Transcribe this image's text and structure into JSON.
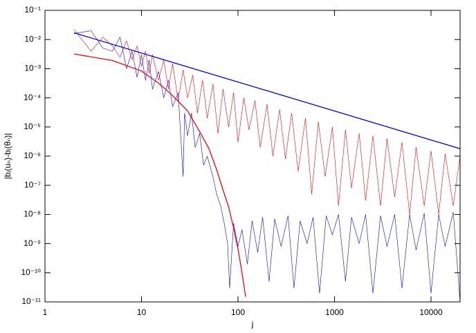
{
  "chart_data": {
    "type": "line",
    "x_label": "j",
    "y_label": "|bⱼ(uₙ)-bⱼ(θₙ)|",
    "xlog": true,
    "ylog": true,
    "grid": false,
    "xlim": [
      1,
      20000
    ],
    "ylim": [
      1e-11,
      0.1
    ],
    "xticks": [
      1,
      10,
      100,
      1000,
      10000
    ],
    "yticks": [
      {
        "value": 0.1,
        "label": "10⁻¹"
      },
      {
        "value": 0.01,
        "label": "10⁻²"
      },
      {
        "value": 0.001,
        "label": "10⁻³"
      },
      {
        "value": 0.0001,
        "label": "10⁻⁴"
      },
      {
        "value": 1e-05,
        "label": "10⁻⁵"
      },
      {
        "value": 1e-06,
        "label": "10⁻⁶"
      },
      {
        "value": 1e-07,
        "label": "10⁻⁷"
      },
      {
        "value": 1e-08,
        "label": "10⁻⁸"
      },
      {
        "value": 1e-09,
        "label": "10⁻⁹"
      },
      {
        "value": 1e-10,
        "label": "10⁻¹⁰"
      },
      {
        "value": 1e-11,
        "label": "10⁻¹¹"
      }
    ],
    "series": [
      {
        "color": "#ff0000",
        "width": 0.6,
        "x": [
          2,
          3,
          4,
          5,
          6,
          7,
          8,
          9,
          10,
          11,
          12,
          13,
          15,
          17,
          19,
          21,
          24,
          27,
          30,
          34,
          38,
          43,
          48,
          55,
          62,
          70,
          80,
          90,
          100,
          115,
          130,
          150,
          170,
          200,
          230,
          270,
          310,
          360,
          420,
          500,
          580,
          680,
          800,
          950,
          1100,
          1300,
          1500,
          1800,
          2100,
          2500,
          3000,
          3500,
          4200,
          5000,
          6000,
          7000,
          8500,
          10000,
          12000,
          14000,
          17000,
          20000
        ],
        "values": [
          0.022,
          0.004,
          0.012,
          0.006,
          0.0025,
          0.009,
          0.002,
          0.006,
          0.0012,
          0.004,
          0.0007,
          0.003,
          0.0004,
          0.002,
          0.0002,
          0.0015,
          8e-05,
          0.0009,
          0.0001,
          0.0006,
          3e-05,
          0.0004,
          2e-05,
          0.0003,
          6e-06,
          0.0002,
          1e-05,
          0.00015,
          3e-06,
          0.0001,
          8e-06,
          8e-05,
          2e-06,
          6e-05,
          1e-06,
          4e-05,
          8e-07,
          3e-05,
          3e-07,
          2e-05,
          5e-08,
          1.5e-05,
          2e-07,
          1e-05,
          2e-08,
          8e-06,
          8e-08,
          6e-06,
          3e-08,
          5e-06,
          2e-08,
          4e-06,
          4e-08,
          3e-06,
          1e-08,
          2e-06,
          2e-08,
          1.5e-06,
          1e-08,
          1.2e-06,
          2e-08,
          1e-06
        ]
      },
      {
        "color": "#0000ff",
        "width": 0.6,
        "x": [
          2,
          3,
          4,
          5,
          6,
          7,
          8,
          9,
          10,
          11,
          12,
          13,
          15,
          17,
          19,
          21,
          24,
          27,
          28,
          30,
          33,
          36,
          40,
          44,
          48,
          55,
          60,
          66,
          72,
          78,
          82,
          90,
          100,
          110,
          125,
          140,
          160,
          180,
          210,
          240,
          280,
          330,
          380,
          440,
          520,
          600,
          700,
          820,
          950,
          1100,
          1300,
          1500,
          1800,
          2100,
          2500,
          3000,
          3500,
          4200,
          5000,
          6000,
          7000,
          8500,
          10000,
          12000,
          14000,
          17000,
          20000
        ],
        "values": [
          0.016,
          0.02,
          0.005,
          0.004,
          0.012,
          0.001,
          0.004,
          0.0005,
          0.003,
          0.0004,
          0.002,
          0.0002,
          0.0008,
          0.0001,
          0.0004,
          5e-05,
          0.00015,
          2e-07,
          3e-05,
          5e-06,
          3e-05,
          2e-06,
          6e-06,
          5e-07,
          1e-06,
          2e-07,
          5e-08,
          2e-08,
          5e-09,
          1e-09,
          3e-11,
          5e-09,
          8e-10,
          3e-09,
          2e-10,
          6e-09,
          5e-10,
          8e-09,
          5e-11,
          7e-09,
          8e-10,
          9e-09,
          3e-11,
          6e-09,
          1e-09,
          8e-09,
          2e-11,
          9e-09,
          2e-09,
          1e-08,
          5e-11,
          8e-09,
          1e-09,
          1e-08,
          2e-11,
          9e-09,
          8e-10,
          1e-08,
          3e-11,
          1e-08,
          6e-10,
          1.1e-08,
          2e-11,
          1e-08,
          8e-10,
          1.2e-08,
          1e-11
        ]
      },
      {
        "color": "#ff0000",
        "width": 1.3,
        "x": [
          2,
          5,
          10,
          15,
          20,
          30,
          40,
          50,
          60,
          70,
          80,
          90,
          100,
          110,
          120
        ],
        "values": [
          0.0032,
          0.0019,
          0.00083,
          0.00032,
          0.00014,
          3.6e-05,
          7e-06,
          1.8e-06,
          3.5e-07,
          6.9e-08,
          1.8e-08,
          3.5e-09,
          6.6e-10,
          1e-10,
          1.5e-11
        ]
      },
      {
        "color": "#0000ff",
        "width": 1.3,
        "x": [
          2,
          20000
        ],
        "values": [
          0.017,
          1.8e-06
        ]
      }
    ]
  }
}
